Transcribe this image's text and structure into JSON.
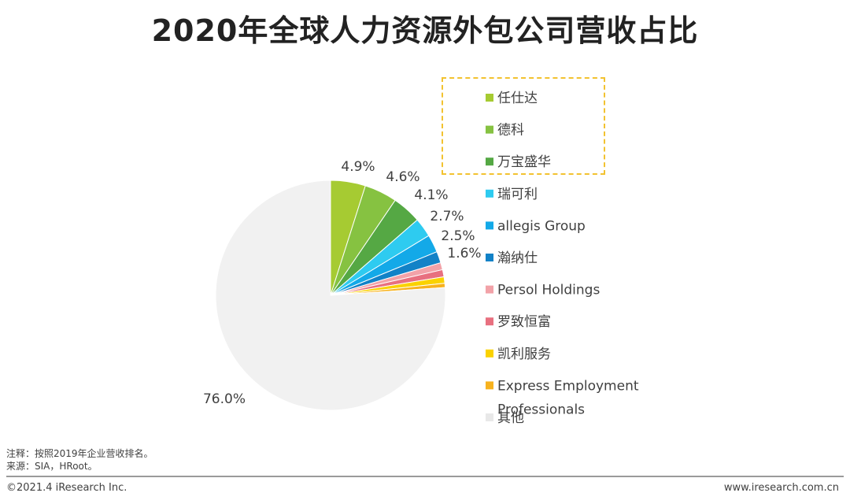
{
  "title": "2020年全球人力资源外包公司营收占比",
  "chart_data": {
    "type": "pie",
    "title": "2020年全球人力资源外包公司营收占比",
    "start_angle_deg": 0,
    "direction": "clockwise",
    "slices": [
      {
        "label": "任仕达",
        "value": 4.9,
        "display": "4.9%",
        "color": "#a6cb32"
      },
      {
        "label": "德科",
        "value": 4.6,
        "display": "4.6%",
        "color": "#86c241"
      },
      {
        "label": "万宝盛华",
        "value": 4.1,
        "display": "4.1%",
        "color": "#55a844"
      },
      {
        "label": "瑞可利",
        "value": 2.7,
        "display": "2.7%",
        "color": "#2ecbf0"
      },
      {
        "label": "allegis Group",
        "value": 2.5,
        "display": "2.5%",
        "color": "#13a9e8"
      },
      {
        "label": "瀚纳仕",
        "value": 1.6,
        "display": "1.6%",
        "color": "#1282c7"
      },
      {
        "label": "Persol Holdings",
        "value": 1.0,
        "display": "",
        "color": "#f2a2a8"
      },
      {
        "label": "罗致恒富",
        "value": 1.0,
        "display": "",
        "color": "#e8707f"
      },
      {
        "label": "凯利服务",
        "value": 0.9,
        "display": "",
        "color": "#fad200"
      },
      {
        "label": "Express Employment Professionals",
        "value": 0.6,
        "display": "",
        "color": "#f7b21e"
      },
      {
        "label": "其他",
        "value": 76.0,
        "display": "76.0%",
        "color": "#f1f1f1"
      }
    ],
    "legend_position": "right",
    "highlighted_legend_entries": [
      "任仕达",
      "德科",
      "万宝盛华"
    ]
  },
  "notes": {
    "line1": "注释：按照2019年企业营收排名。",
    "line2": "来源：SIA，HRoot。"
  },
  "footer": {
    "copyright": "©2021.4 iResearch Inc.",
    "website": "www.iresearch.com.cn"
  }
}
